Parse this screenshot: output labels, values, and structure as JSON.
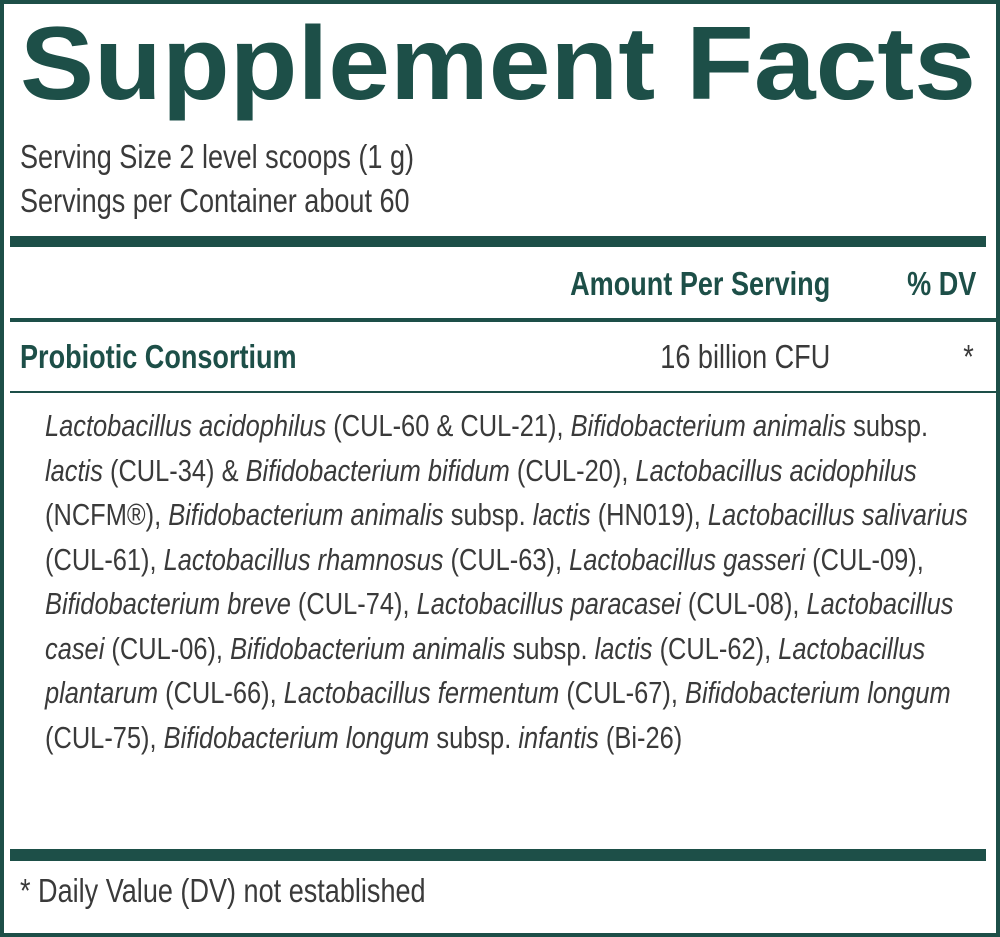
{
  "title": "Supplement Facts",
  "serving_size": "Serving Size 2 level scoops (1 g)",
  "servings_per_container": "Servings per Container about 60",
  "columns": {
    "amount": "Amount Per Serving",
    "dv": "% DV"
  },
  "rows": [
    {
      "name": "Probiotic Consortium",
      "amount": "16 billion CFU",
      "dv": "*"
    }
  ],
  "ingredients": [
    {
      "text": "Lactobacillus acidophilus",
      "italic": true
    },
    {
      "text": " (CUL-60 & CUL-21), ",
      "italic": false
    },
    {
      "text": "Bifidobacterium animalis",
      "italic": true
    },
    {
      "text": " subsp. ",
      "italic": false
    },
    {
      "text": "lactis",
      "italic": true
    },
    {
      "text": " (CUL-34) & ",
      "italic": false
    },
    {
      "text": "Bifidobacterium bifidum",
      "italic": true
    },
    {
      "text": " (CUL-20), ",
      "italic": false
    },
    {
      "text": "Lactobacillus acidophilus",
      "italic": true
    },
    {
      "text": " (NCFM®), ",
      "italic": false
    },
    {
      "text": "Bifidobacterium animalis",
      "italic": true
    },
    {
      "text": " subsp. ",
      "italic": false
    },
    {
      "text": "lactis",
      "italic": true
    },
    {
      "text": " (HN019), ",
      "italic": false
    },
    {
      "text": "Lactobacillus salivarius",
      "italic": true
    },
    {
      "text": " (CUL-61), ",
      "italic": false
    },
    {
      "text": "Lactobacillus rhamnosus",
      "italic": true
    },
    {
      "text": " (CUL-63), ",
      "italic": false
    },
    {
      "text": "Lactobacillus gasseri",
      "italic": true
    },
    {
      "text": " (CUL-09), ",
      "italic": false
    },
    {
      "text": "Bifidobacterium breve",
      "italic": true
    },
    {
      "text": " (CUL-74), ",
      "italic": false
    },
    {
      "text": "Lactobacillus paracasei",
      "italic": true
    },
    {
      "text": " (CUL-08), ",
      "italic": false
    },
    {
      "text": "Lactobacillus casei",
      "italic": true
    },
    {
      "text": " (CUL-06), ",
      "italic": false
    },
    {
      "text": "Bifidobacterium animalis",
      "italic": true
    },
    {
      "text": " subsp. ",
      "italic": false
    },
    {
      "text": "lactis",
      "italic": true
    },
    {
      "text": " (CUL-62), ",
      "italic": false
    },
    {
      "text": "Lactobacillus plantarum",
      "italic": true
    },
    {
      "text": " (CUL-66), ",
      "italic": false
    },
    {
      "text": "Lactobacillus fermentum",
      "italic": true
    },
    {
      "text": " (CUL-67), ",
      "italic": false
    },
    {
      "text": "Bifidobacterium longum",
      "italic": true
    },
    {
      "text": " (CUL-75), ",
      "italic": false
    },
    {
      "text": "Bifidobacterium longum",
      "italic": true
    },
    {
      "text": " subsp. ",
      "italic": false
    },
    {
      "text": "infantis",
      "italic": true
    },
    {
      "text": " (Bi-26)",
      "italic": false
    }
  ],
  "footnote": "* Daily Value (DV) not established"
}
